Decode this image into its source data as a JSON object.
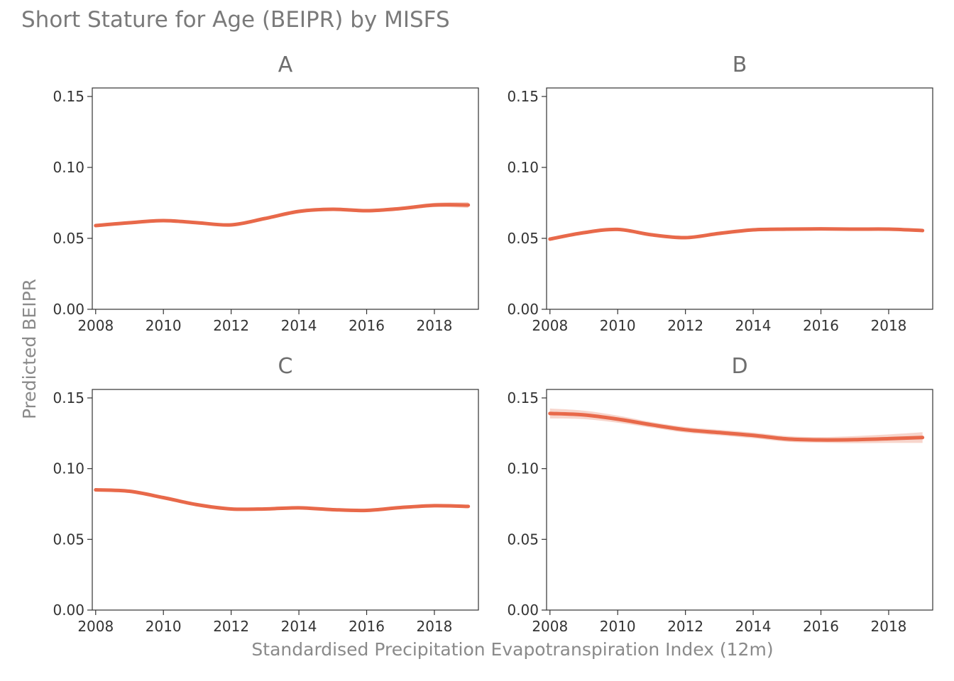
{
  "chart_data": {
    "type": "line",
    "title": "Short Stature for Age (BEIPR) by MISFS",
    "xlabel": "Standardised Precipitation Evapotranspiration Index (12m)",
    "ylabel": "Predicted BEIPR",
    "xlim": [
      2007.9,
      2019.3
    ],
    "ylim": [
      0,
      0.156
    ],
    "x_ticks": [
      2008,
      2010,
      2012,
      2014,
      2016,
      2018
    ],
    "x_tick_labels": [
      "2008",
      "2010",
      "2012",
      "2014",
      "2016",
      "2018"
    ],
    "y_ticks": [
      0,
      0.05,
      0.1,
      0.15
    ],
    "y_tick_labels": [
      "0.00",
      "0.05",
      "0.10",
      "0.15"
    ],
    "grid": false,
    "line_color": "#e8694a",
    "band_color": "#f4c7bb",
    "panels": [
      {
        "label": "A",
        "x": [
          2008,
          2009,
          2010,
          2011,
          2012,
          2013,
          2014,
          2015,
          2016,
          2017,
          2018,
          2019
        ],
        "y": [
          0.059,
          0.061,
          0.0625,
          0.061,
          0.0595,
          0.064,
          0.069,
          0.0705,
          0.0695,
          0.071,
          0.0735,
          0.0735
        ],
        "band": [
          0.001,
          0.001,
          0.001,
          0.001,
          0.001,
          0.001,
          0.0012,
          0.0012,
          0.0012,
          0.0012,
          0.0015,
          0.002
        ]
      },
      {
        "label": "B",
        "x": [
          2008,
          2009,
          2010,
          2011,
          2012,
          2013,
          2014,
          2015,
          2016,
          2017,
          2018,
          2019
        ],
        "y": [
          0.0495,
          0.054,
          0.0563,
          0.0525,
          0.0505,
          0.0535,
          0.056,
          0.0565,
          0.0567,
          0.0565,
          0.0565,
          0.0555
        ],
        "band": [
          0.001,
          0.001,
          0.001,
          0.001,
          0.001,
          0.001,
          0.001,
          0.001,
          0.001,
          0.001,
          0.001,
          0.001
        ]
      },
      {
        "label": "C",
        "x": [
          2008,
          2009,
          2010,
          2011,
          2012,
          2013,
          2014,
          2015,
          2016,
          2017,
          2018,
          2019
        ],
        "y": [
          0.085,
          0.084,
          0.0795,
          0.0745,
          0.0715,
          0.0715,
          0.0723,
          0.071,
          0.0705,
          0.0725,
          0.0738,
          0.0733
        ],
        "band": [
          0.001,
          0.001,
          0.001,
          0.001,
          0.001,
          0.001,
          0.001,
          0.001,
          0.001,
          0.001,
          0.001,
          0.001
        ]
      },
      {
        "label": "D",
        "x": [
          2008,
          2009,
          2010,
          2011,
          2012,
          2013,
          2014,
          2015,
          2016,
          2017,
          2018,
          2019
        ],
        "y": [
          0.139,
          0.138,
          0.135,
          0.131,
          0.1275,
          0.1255,
          0.1235,
          0.121,
          0.1203,
          0.1205,
          0.1212,
          0.122
        ],
        "band": [
          0.0035,
          0.003,
          0.0025,
          0.002,
          0.002,
          0.002,
          0.002,
          0.002,
          0.002,
          0.0025,
          0.003,
          0.0038
        ]
      }
    ]
  }
}
